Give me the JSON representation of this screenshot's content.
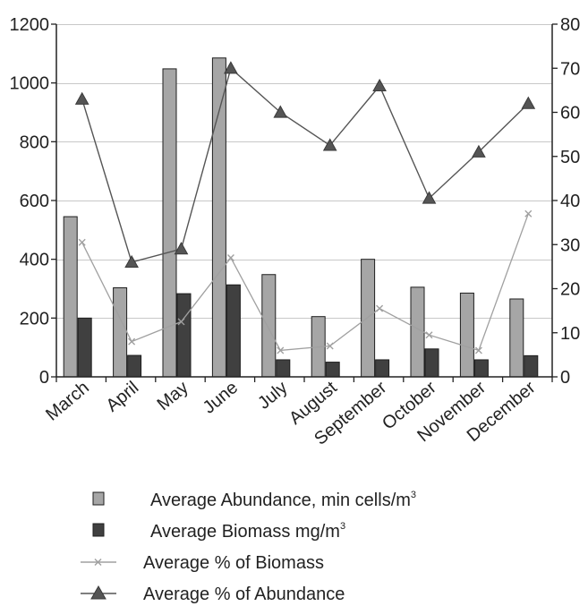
{
  "chart_data": {
    "type": "bar",
    "title": "",
    "xlabel": "",
    "ylabel": "",
    "categories": [
      "March",
      "April",
      "May",
      "June",
      "July",
      "August",
      "September",
      "October",
      "November",
      "December"
    ],
    "y_left": {
      "lim": [
        0,
        1200
      ],
      "ticks": [
        0,
        200,
        400,
        600,
        800,
        1000,
        1200
      ]
    },
    "y_right": {
      "lim": [
        0,
        80
      ],
      "ticks": [
        0,
        10,
        20,
        30,
        40,
        50,
        60,
        70,
        80
      ]
    },
    "grid": true,
    "legend_placement": "bottom",
    "series": [
      {
        "name": "Average Abundance, min cells/m",
        "name_sup": "3",
        "kind": "bar",
        "axis": "left",
        "color": "#a6a6a6",
        "values": [
          545,
          303,
          1048,
          1085,
          348,
          205,
          400,
          305,
          285,
          265
        ]
      },
      {
        "name": "Average Biomass mg/m",
        "name_sup": "3",
        "kind": "bar",
        "axis": "left",
        "color": "#404040",
        "values": [
          200,
          73,
          283,
          313,
          58,
          50,
          58,
          95,
          58,
          72
        ]
      },
      {
        "name": "Average % of Biomass",
        "name_sup": "",
        "kind": "line",
        "marker": "x",
        "axis": "right",
        "color": "#a0a0a0",
        "values": [
          30.5,
          8,
          12.5,
          27,
          6,
          7,
          15.5,
          9.5,
          6,
          37
        ]
      },
      {
        "name": "Average % of Abundance",
        "name_sup": "",
        "kind": "line",
        "marker": "triangle",
        "axis": "right",
        "color": "#555555",
        "values": [
          63,
          26,
          29,
          70,
          60,
          52.5,
          66,
          40.5,
          51,
          62
        ]
      }
    ]
  }
}
